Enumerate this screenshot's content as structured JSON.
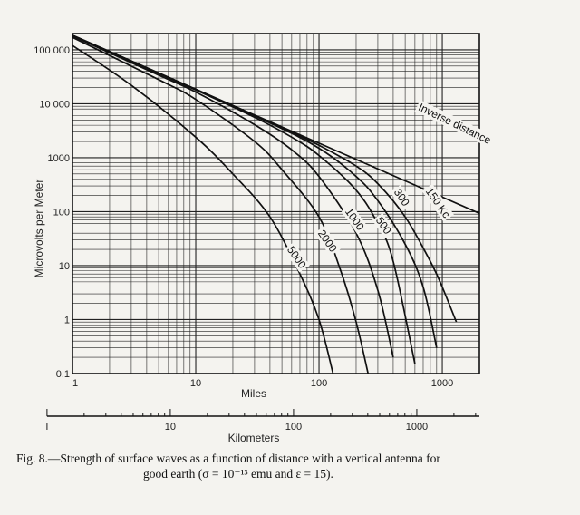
{
  "chart_data": {
    "type": "line",
    "x_scale": "log",
    "y_scale": "log",
    "xlabel": "Miles",
    "ylabel": "Microvolts per Meter",
    "secondary_xlabel": "Kilometers",
    "xlim": [
      1,
      2000
    ],
    "ylim": [
      0.1,
      200000
    ],
    "x_ticks": [
      {
        "value": 1,
        "label": "1"
      },
      {
        "value": 10,
        "label": "10"
      },
      {
        "value": 100,
        "label": "100"
      },
      {
        "value": 1000,
        "label": "1000"
      }
    ],
    "y_ticks": [
      {
        "value": 100000,
        "label": "100 000"
      },
      {
        "value": 10000,
        "label": "10 000"
      },
      {
        "value": 1000,
        "label": "1000"
      },
      {
        "value": 100,
        "label": "100"
      },
      {
        "value": 10,
        "label": "10"
      },
      {
        "value": 1,
        "label": "1"
      },
      {
        "value": 0.1,
        "label": "0.1"
      }
    ],
    "km_ticks": [
      {
        "value": 1,
        "label": "I"
      },
      {
        "value": 10,
        "label": "10"
      },
      {
        "value": 100,
        "label": "100"
      },
      {
        "value": 1000,
        "label": "1000"
      }
    ],
    "grid": true,
    "series": [
      {
        "name": "Inverse distance",
        "points": [
          [
            1,
            186000
          ],
          [
            10,
            18600
          ],
          [
            100,
            1860
          ],
          [
            1000,
            186
          ],
          [
            2000,
            93
          ]
        ]
      },
      {
        "name": "150 Kc",
        "points": [
          [
            1,
            186000
          ],
          [
            10,
            18600
          ],
          [
            50,
            3600
          ],
          [
            100,
            1700
          ],
          [
            200,
            700
          ],
          [
            300,
            330
          ],
          [
            500,
            80
          ],
          [
            800,
            12
          ],
          [
            1000,
            4
          ],
          [
            1300,
            0.9
          ]
        ]
      },
      {
        "name": "300",
        "points": [
          [
            1,
            185000
          ],
          [
            10,
            18400
          ],
          [
            40,
            4400
          ],
          [
            100,
            1500
          ],
          [
            200,
            450
          ],
          [
            300,
            160
          ],
          [
            500,
            25
          ],
          [
            700,
            4
          ],
          [
            900,
            0.3
          ]
        ]
      },
      {
        "name": "500",
        "points": [
          [
            1,
            184000
          ],
          [
            10,
            18000
          ],
          [
            30,
            5600
          ],
          [
            60,
            2400
          ],
          [
            100,
            1100
          ],
          [
            200,
            250
          ],
          [
            300,
            60
          ],
          [
            400,
            12
          ],
          [
            600,
            0.15
          ]
        ]
      },
      {
        "name": "1000",
        "points": [
          [
            1,
            180000
          ],
          [
            5,
            34000
          ],
          [
            10,
            16500
          ],
          [
            30,
            4100
          ],
          [
            60,
            1400
          ],
          [
            100,
            450
          ],
          [
            200,
            40
          ],
          [
            300,
            3.5
          ],
          [
            400,
            0.2
          ]
        ]
      },
      {
        "name": "2000",
        "points": [
          [
            1,
            170000
          ],
          [
            5,
            28000
          ],
          [
            10,
            12000
          ],
          [
            30,
            2000
          ],
          [
            50,
            600
          ],
          [
            100,
            80
          ],
          [
            150,
            8
          ],
          [
            200,
            0.9
          ],
          [
            250,
            0.1
          ]
        ]
      },
      {
        "name": "5000",
        "points": [
          [
            1,
            120000
          ],
          [
            3,
            22000
          ],
          [
            10,
            2400
          ],
          [
            20,
            500
          ],
          [
            40,
            80
          ],
          [
            70,
            7
          ],
          [
            100,
            1
          ],
          [
            130,
            0.1
          ]
        ]
      }
    ],
    "curve_labels": [
      {
        "text": "Inverse distance",
        "series": "Inverse distance"
      },
      {
        "text": "150 Kc",
        "series": "150 Kc"
      },
      {
        "text": "300",
        "series": "300"
      },
      {
        "text": "500",
        "series": "500"
      },
      {
        "text": "1000",
        "series": "1000"
      },
      {
        "text": "2000",
        "series": "2000"
      },
      {
        "text": "5000",
        "series": "5000"
      }
    ]
  },
  "caption": {
    "line1": "Fig. 8.—Strength of surface waves as a function of distance with a vertical antenna for",
    "line2": "good earth (σ = 10⁻¹³ emu and ε = 15)."
  }
}
